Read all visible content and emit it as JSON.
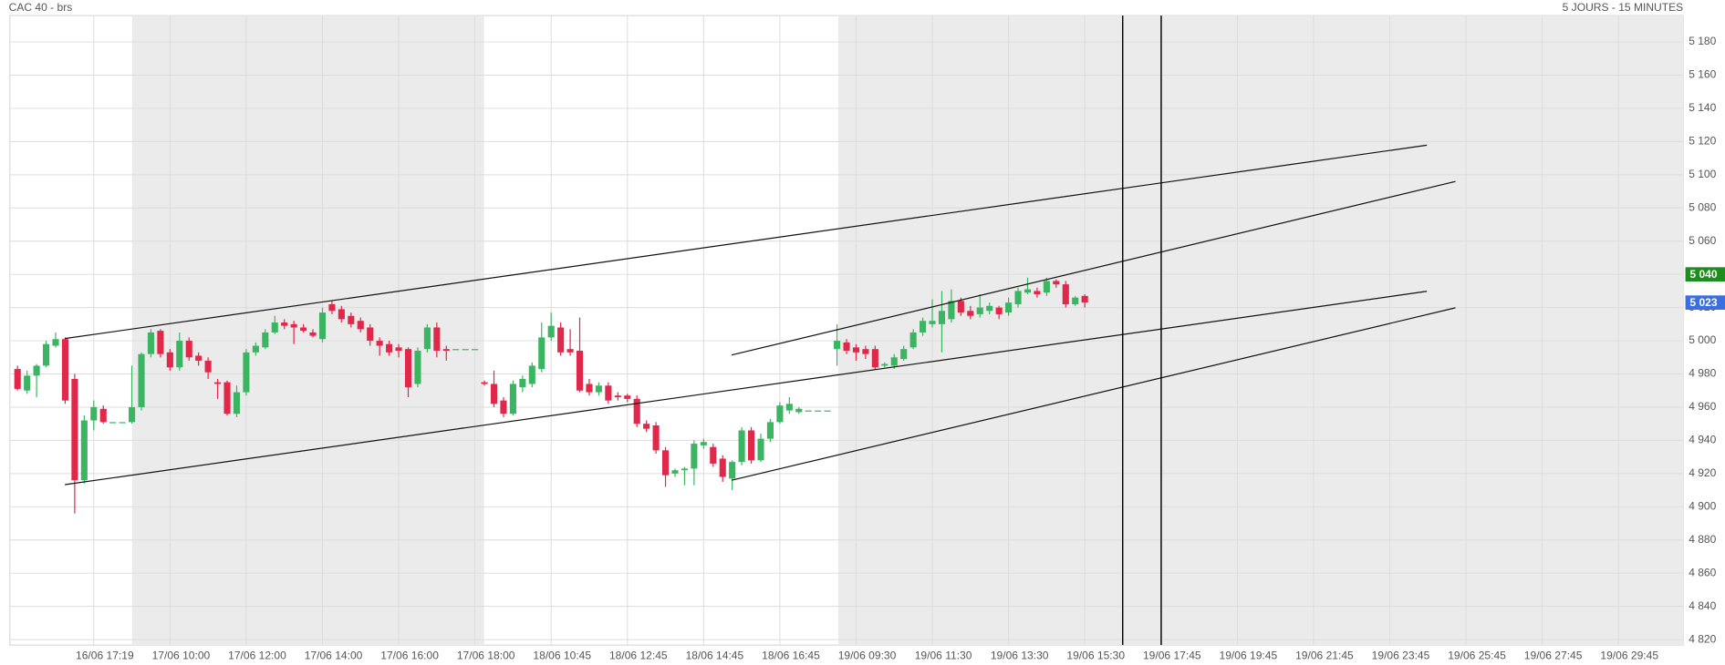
{
  "chart_data": {
    "type": "candlestick",
    "title": "CAC 40 - brs",
    "subtitle": "5 JOURS - 15 MINUTES",
    "up_color": "#3cb563",
    "down_color": "#e0284a",
    "grid": true,
    "x": [
      0,
      1,
      2,
      3,
      4,
      5,
      6,
      7,
      8,
      9,
      10,
      11,
      12,
      13,
      14,
      15,
      16,
      17,
      18,
      19,
      20,
      21,
      22,
      23,
      24,
      25,
      26,
      27,
      28,
      29,
      30,
      31,
      32,
      33,
      34,
      35,
      36,
      37,
      38,
      39,
      40,
      41,
      42,
      43,
      44,
      45,
      46,
      47,
      48,
      49,
      50,
      51,
      52,
      53,
      54,
      55,
      56,
      57,
      58,
      59,
      60,
      61,
      62,
      63,
      64,
      65,
      66,
      67,
      68,
      69,
      70,
      71,
      72,
      73,
      74,
      75,
      76,
      77,
      78,
      79,
      80,
      81,
      82,
      83,
      84,
      85,
      86,
      87,
      88,
      89,
      90,
      91,
      92,
      93,
      94,
      95,
      96,
      97,
      98,
      99,
      100,
      101,
      102,
      103,
      104,
      105,
      106,
      107,
      108,
      109,
      110,
      111,
      112
    ],
    "open": [
      4983,
      4970,
      4979,
      4985,
      4997,
      5001,
      4977,
      4916,
      4952,
      4959,
      4951,
      4951,
      4951,
      4960,
      4992,
      5006,
      4993,
      4984,
      5000,
      4991,
      4988,
      4975,
      4975,
      4956,
      4969,
      4993,
      4996,
      5005,
      5011,
      5010,
      5008,
      5005,
      5001,
      5022,
      5019,
      5015,
      5012,
      5008,
      5000,
      4998,
      4996,
      4995,
      4974,
      4995,
      5008,
      4995,
      4995,
      4995,
      4995,
      4975,
      4974,
      4964,
      4956,
      4972,
      4974,
      4983,
      5002,
      5008,
      4995,
      4994,
      4974,
      4969,
      4973,
      4967,
      4967,
      4965,
      4950,
      4949,
      4934,
      4920,
      4922,
      4923,
      4937,
      4936,
      4929,
      4917,
      4927,
      4946,
      4928,
      4941,
      4951,
      4958,
      4957,
      4958,
      4958,
      4958,
      4995,
      4999,
      4996,
      4995,
      4995,
      4985,
      4985,
      4989,
      4996,
      5005,
      5010,
      5010,
      5013,
      5024,
      5018,
      5016,
      5018,
      5020,
      5017,
      5022,
      5029,
      5030,
      5029,
      5036,
      5034,
      5022,
      5027
    ],
    "high": [
      4985,
      4982,
      4986,
      5000,
      5005,
      5002,
      4980,
      4955,
      4964,
      4961,
      4951,
      4951,
      4985,
      4993,
      5007,
      5007,
      4995,
      5005,
      5002,
      4993,
      4990,
      4977,
      4976,
      4973,
      4995,
      4999,
      5007,
      5015,
      5013,
      5012,
      5010,
      5007,
      5020,
      5024,
      5021,
      5017,
      5014,
      5010,
      5002,
      5000,
      4998,
      4996,
      4996,
      5010,
      5011,
      4997,
      4995,
      4995,
      4995,
      4976,
      4982,
      4966,
      4976,
      4979,
      4987,
      5011,
      5017,
      5011,
      5007,
      5014,
      4977,
      4975,
      4975,
      4969,
      4968,
      4967,
      4952,
      4951,
      4936,
      4923,
      4924,
      4940,
      4941,
      4938,
      4931,
      4928,
      4948,
      4948,
      4944,
      4953,
      4963,
      4966,
      4960,
      4958,
      4958,
      4958,
      5010,
      5001,
      4998,
      4997,
      4997,
      4987,
      4992,
      4997,
      5007,
      5014,
      5025,
      5030,
      5031,
      5026,
      5021,
      5028,
      5023,
      5021,
      5026,
      5032,
      5038,
      5032,
      5038,
      5037,
      5036,
      5027,
      5028
    ],
    "low": [
      4970,
      4968,
      4966,
      4984,
      4996,
      4962,
      4896,
      4914,
      4946,
      4950,
      4951,
      4951,
      4950,
      4958,
      4990,
      4990,
      4982,
      4982,
      4988,
      4985,
      4977,
      4965,
      4955,
      4954,
      4967,
      4991,
      4995,
      5004,
      5007,
      4998,
      5005,
      5002,
      4999,
      5016,
      5011,
      5008,
      5005,
      4997,
      4991,
      4991,
      4990,
      4966,
      4972,
      4993,
      4990,
      4988,
      4995,
      4995,
      4995,
      4973,
      4960,
      4954,
      4955,
      4969,
      4972,
      4981,
      5000,
      4991,
      4991,
      4969,
      4967,
      4967,
      4962,
      4964,
      4963,
      4948,
      4945,
      4932,
      4912,
      4918,
      4913,
      4913,
      4935,
      4924,
      4915,
      4910,
      4925,
      4926,
      4927,
      4939,
      4950,
      4956,
      4956,
      4958,
      4958,
      4958,
      4985,
      4992,
      4988,
      4989,
      4983,
      4984,
      4983,
      4988,
      4995,
      5003,
      5008,
      4993,
      5011,
      5015,
      5013,
      5014,
      5016,
      5013,
      5015,
      5020,
      5028,
      5026,
      5027,
      5032,
      5020,
      5021,
      5020
    ],
    "close": [
      4971,
      4979,
      4985,
      4998,
      5001,
      4964,
      4916,
      4952,
      4960,
      4951,
      4951,
      4951,
      4960,
      4992,
      5005,
      4992,
      4984,
      5000,
      4990,
      4988,
      4981,
      4974,
      4956,
      4969,
      4993,
      4997,
      5005,
      5011,
      5009,
      5008,
      5006,
      5003,
      5017,
      5018,
      5013,
      5010,
      5007,
      5000,
      4997,
      4993,
      4994,
      4972,
      4994,
      5008,
      4994,
      4994,
      4995,
      4995,
      4995,
      4974,
      4962,
      4956,
      4974,
      4977,
      4985,
      5002,
      5009,
      4993,
      4993,
      4970,
      4969,
      4973,
      4964,
      4966,
      4965,
      4950,
      4947,
      4934,
      4919,
      4922,
      4923,
      4938,
      4939,
      4926,
      4918,
      4927,
      4946,
      4928,
      4941,
      4951,
      4961,
      4962,
      4959,
      4958,
      4958,
      4958,
      5000,
      4994,
      4993,
      4992,
      4984,
      4986,
      4990,
      4995,
      5005,
      5012,
      5012,
      5018,
      5024,
      5017,
      5015,
      5020,
      5021,
      5016,
      5023,
      5030,
      5031,
      5028,
      5036,
      5034,
      5022,
      5026,
      5023
    ],
    "xlim": [
      -0.8,
      174.8
    ],
    "xticks": [
      {
        "value": 8,
        "label": "16/06 17:19"
      },
      {
        "value": 16,
        "label": "17/06 10:00"
      },
      {
        "value": 24,
        "label": "17/06 12:00"
      },
      {
        "value": 32,
        "label": "17/06 14:00"
      },
      {
        "value": 40,
        "label": "17/06 16:00"
      },
      {
        "value": 48,
        "label": "17/06 18:00"
      },
      {
        "value": 56,
        "label": "18/06 10:45"
      },
      {
        "value": 64,
        "label": "18/06 12:45"
      },
      {
        "value": 72,
        "label": "18/06 14:45"
      },
      {
        "value": 80,
        "label": "18/06 16:45"
      },
      {
        "value": 88,
        "label": "19/06 09:30"
      },
      {
        "value": 96,
        "label": "19/06 11:30"
      },
      {
        "value": 104,
        "label": "19/06 13:30"
      },
      {
        "value": 112,
        "label": "19/06 15:30"
      },
      {
        "value": 120,
        "label": "19/06 17:45"
      },
      {
        "value": 128,
        "label": "19/06 19:45"
      },
      {
        "value": 136,
        "label": "19/06 21:45"
      },
      {
        "value": 144,
        "label": "19/06 23:45"
      },
      {
        "value": 152,
        "label": "19/06 25:45"
      },
      {
        "value": 160,
        "label": "19/06 27:45"
      },
      {
        "value": 168,
        "label": "19/06 29:45"
      }
    ],
    "ylim": [
      4816.7,
      5195.9
    ],
    "yticks": [
      {
        "value": 4820,
        "label": "4 820"
      },
      {
        "value": 4840,
        "label": "4 840"
      },
      {
        "value": 4860,
        "label": "4 860"
      },
      {
        "value": 4880,
        "label": "4 880"
      },
      {
        "value": 4900,
        "label": "4 900"
      },
      {
        "value": 4920,
        "label": "4 920"
      },
      {
        "value": 4940,
        "label": "4 940"
      },
      {
        "value": 4960,
        "label": "4 960"
      },
      {
        "value": 4980,
        "label": "4 980"
      },
      {
        "value": 5000,
        "label": "5 000"
      },
      {
        "value": 5020,
        "label": "5 020"
      },
      {
        "value": 5040,
        "label": "5 040"
      },
      {
        "value": 5060,
        "label": "5 060"
      },
      {
        "value": 5080,
        "label": "5 080"
      },
      {
        "value": 5100,
        "label": "5 100"
      },
      {
        "value": 5120,
        "label": "5 120"
      },
      {
        "value": 5140,
        "label": "5 140"
      },
      {
        "value": 5160,
        "label": "5 160"
      },
      {
        "value": 5180,
        "label": "5 180"
      }
    ],
    "price_labels": [
      {
        "value": 5040,
        "label": "5 040",
        "color": "#1e8c1e"
      },
      {
        "value": 5023,
        "label": "5 023",
        "color": "#3b6fe0"
      }
    ]
  }
}
